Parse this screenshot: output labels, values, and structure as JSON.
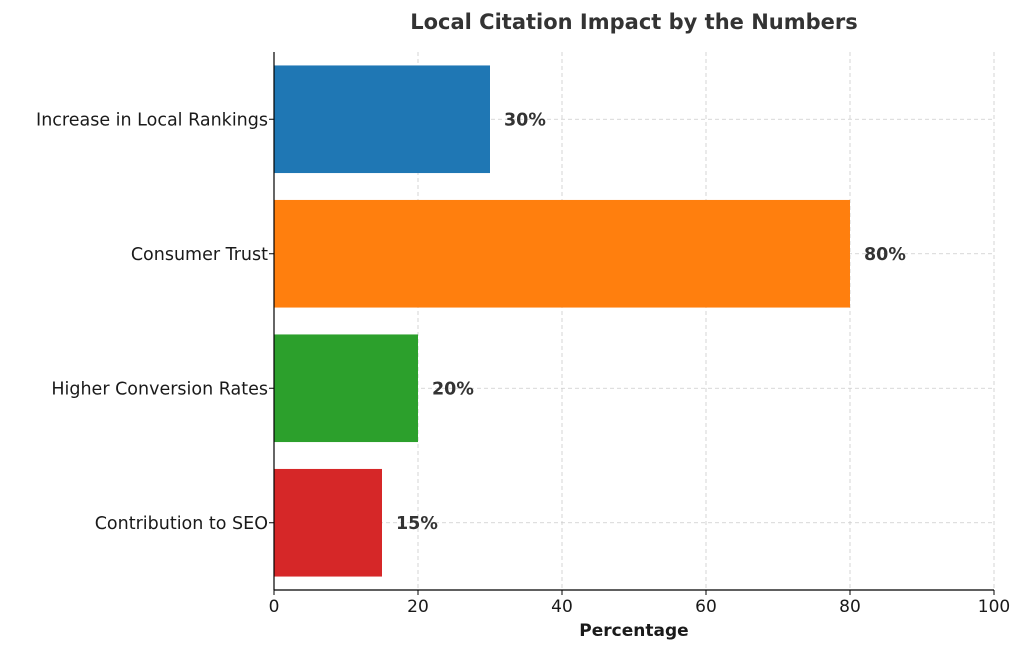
{
  "chart_data": {
    "type": "bar",
    "orientation": "horizontal",
    "title": "Local Citation Impact by the Numbers",
    "xlabel": "Percentage",
    "ylabel": "",
    "xlim": [
      0,
      100
    ],
    "xticks": [
      0,
      20,
      40,
      60,
      80,
      100
    ],
    "categories": [
      "Increase in Local Rankings",
      "Consumer Trust",
      "Higher Conversion Rates",
      "Contribution to SEO"
    ],
    "values": [
      30,
      80,
      20,
      15
    ],
    "value_labels": [
      "30%",
      "80%",
      "20%",
      "15%"
    ],
    "colors": [
      "#1f77b4",
      "#ff7f0e",
      "#2ca02c",
      "#d62728"
    ],
    "grid": true
  }
}
